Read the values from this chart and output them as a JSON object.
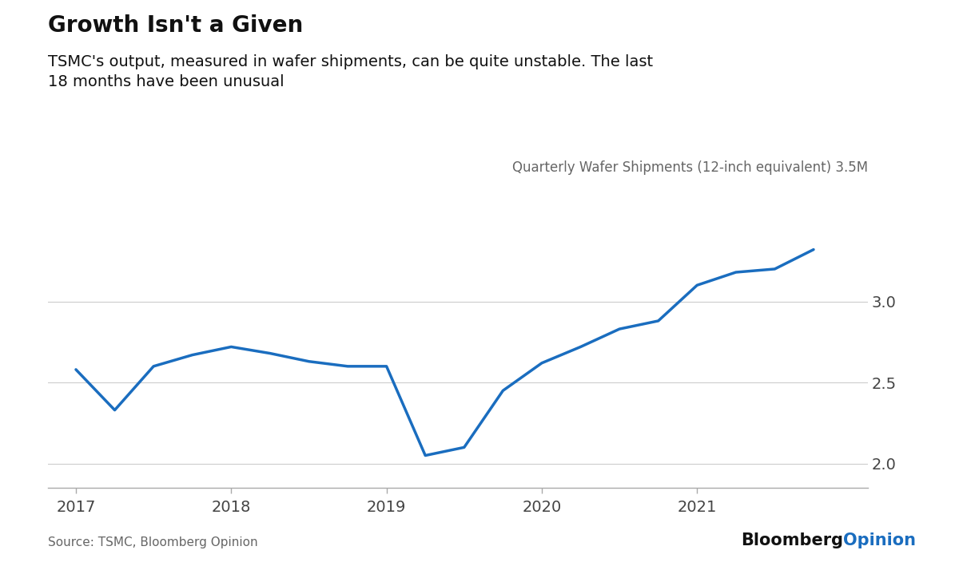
{
  "title": "Growth Isn't a Given",
  "subtitle": "TSMC's output, measured in wafer shipments, can be quite unstable. The last\n18 months have been unusual",
  "annotation": "Quarterly Wafer Shipments (12-inch equivalent) 3.5M",
  "source": "Source: TSMC, Bloomberg Opinion",
  "bloomberg_text": "Bloomberg",
  "opinion_text": "Opinion",
  "line_color": "#1a6dbf",
  "opinion_color": "#1a6dbf",
  "line_width": 2.5,
  "background_color": "#ffffff",
  "grid_color": "#cccccc",
  "spine_color": "#aaaaaa",
  "text_dark": "#111111",
  "text_mid": "#444444",
  "text_light": "#666666",
  "ylim": [
    1.85,
    3.62
  ],
  "yticks": [
    2.0,
    2.5,
    3.0
  ],
  "x_data": [
    2017.0,
    2017.25,
    2017.5,
    2017.75,
    2018.0,
    2018.25,
    2018.5,
    2018.75,
    2019.0,
    2019.25,
    2019.5,
    2019.75,
    2020.0,
    2020.25,
    2020.5,
    2020.75,
    2021.0,
    2021.25,
    2021.5,
    2021.75
  ],
  "y_data": [
    2.58,
    2.33,
    2.6,
    2.67,
    2.72,
    2.68,
    2.63,
    2.6,
    2.6,
    2.05,
    2.1,
    2.45,
    2.62,
    2.72,
    2.83,
    2.88,
    3.1,
    3.18,
    3.2,
    3.32
  ],
  "xlim": [
    2016.82,
    2022.1
  ],
  "xtick_positions": [
    2017,
    2018,
    2019,
    2020,
    2021
  ],
  "xtick_labels": [
    "2017",
    "2018",
    "2019",
    "2020",
    "2021"
  ],
  "title_fontsize": 20,
  "subtitle_fontsize": 14,
  "annotation_fontsize": 12,
  "tick_fontsize": 14,
  "source_fontsize": 11,
  "brand_fontsize": 15
}
